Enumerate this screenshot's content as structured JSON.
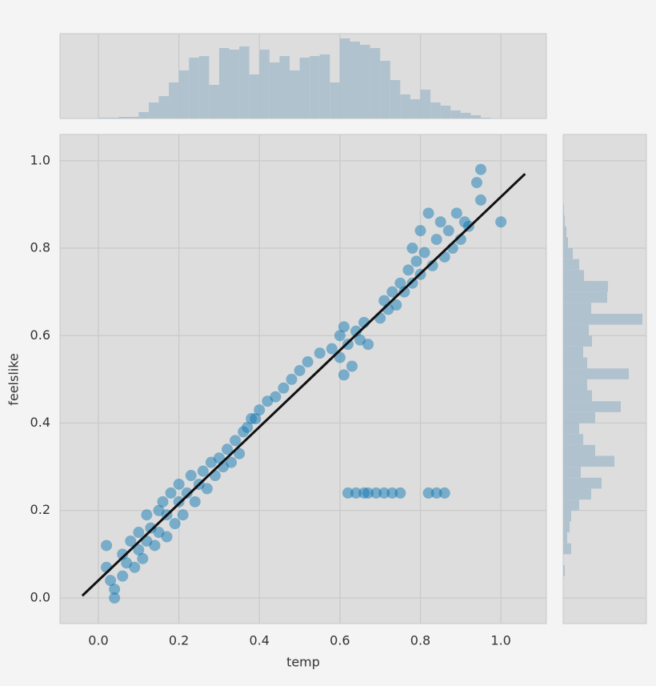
{
  "chart_data": {
    "type": "scatter",
    "xlabel": "temp",
    "ylabel": "feelslike",
    "xlim": [
      -0.0954,
      1.113
    ],
    "ylim": [
      -0.0586,
      1.06
    ],
    "xticks": [
      {
        "value": 0,
        "label": "0.0"
      },
      0.2,
      0.4,
      0.6,
      0.8,
      {
        "value": 1,
        "label": "1.0"
      }
    ],
    "yticks": [
      {
        "value": 0,
        "label": "0.0"
      },
      0.2,
      0.4,
      0.6,
      0.8,
      {
        "value": 1,
        "label": "1.0"
      }
    ],
    "grid": true,
    "color": "#0072b2",
    "line_color": "#111111",
    "hist_color": "#a9bdcd",
    "x": [
      0.02,
      0.02,
      0.03,
      0.04,
      0.04,
      0.06,
      0.06,
      0.07,
      0.08,
      0.09,
      0.1,
      0.1,
      0.11,
      0.12,
      0.12,
      0.13,
      0.14,
      0.15,
      0.15,
      0.16,
      0.17,
      0.17,
      0.18,
      0.19,
      0.2,
      0.2,
      0.21,
      0.22,
      0.23,
      0.24,
      0.25,
      0.26,
      0.27,
      0.28,
      0.29,
      0.3,
      0.31,
      0.32,
      0.33,
      0.34,
      0.35,
      0.36,
      0.37,
      0.38,
      0.39,
      0.4,
      0.42,
      0.44,
      0.46,
      0.48,
      0.5,
      0.52,
      0.55,
      0.58,
      0.6,
      0.6,
      0.61,
      0.61,
      0.62,
      0.63,
      0.64,
      0.65,
      0.66,
      0.67,
      0.7,
      0.71,
      0.72,
      0.73,
      0.74,
      0.75,
      0.76,
      0.77,
      0.78,
      0.78,
      0.79,
      0.8,
      0.8,
      0.81,
      0.82,
      0.83,
      0.84,
      0.85,
      0.86,
      0.87,
      0.88,
      0.89,
      0.9,
      0.91,
      0.92,
      0.94,
      0.95,
      0.95,
      1.0,
      0.62,
      0.64,
      0.66,
      0.67,
      0.69,
      0.71,
      0.73,
      0.75,
      0.82,
      0.84,
      0.86
    ],
    "y": [
      0.12,
      0.07,
      0.04,
      0.02,
      0.0,
      0.05,
      0.1,
      0.08,
      0.13,
      0.07,
      0.11,
      0.15,
      0.09,
      0.13,
      0.19,
      0.16,
      0.12,
      0.2,
      0.15,
      0.22,
      0.14,
      0.19,
      0.24,
      0.17,
      0.22,
      0.26,
      0.19,
      0.24,
      0.28,
      0.22,
      0.26,
      0.29,
      0.25,
      0.31,
      0.28,
      0.32,
      0.3,
      0.34,
      0.31,
      0.36,
      0.33,
      0.38,
      0.39,
      0.41,
      0.41,
      0.43,
      0.45,
      0.46,
      0.48,
      0.5,
      0.52,
      0.54,
      0.56,
      0.57,
      0.6,
      0.55,
      0.62,
      0.51,
      0.58,
      0.53,
      0.61,
      0.59,
      0.63,
      0.58,
      0.64,
      0.68,
      0.66,
      0.7,
      0.67,
      0.72,
      0.7,
      0.75,
      0.72,
      0.8,
      0.77,
      0.74,
      0.84,
      0.79,
      0.88,
      0.76,
      0.82,
      0.86,
      0.78,
      0.84,
      0.8,
      0.88,
      0.82,
      0.86,
      0.85,
      0.95,
      0.98,
      0.91,
      0.86,
      0.24,
      0.24,
      0.24,
      0.24,
      0.24,
      0.24,
      0.24,
      0.24,
      0.24,
      0.24,
      0.24
    ],
    "regression_line": {
      "x": [
        -0.04,
        1.06
      ],
      "y": [
        0.005,
        0.97
      ]
    },
    "marginal_x": {
      "bins": [
        0,
        0.025,
        0.05,
        0.075,
        0.1,
        0.125,
        0.15,
        0.175,
        0.2,
        0.225,
        0.25,
        0.275,
        0.3,
        0.325,
        0.35,
        0.375,
        0.4,
        0.425,
        0.45,
        0.475,
        0.5,
        0.525,
        0.55,
        0.575,
        0.6,
        0.625,
        0.65,
        0.675,
        0.7,
        0.725,
        0.75,
        0.775,
        0.8,
        0.825,
        0.85,
        0.875,
        0.9,
        0.925,
        0.95,
        0.975,
        1.0
      ],
      "counts": [
        1,
        1,
        2,
        2,
        8,
        20,
        28,
        45,
        60,
        76,
        78,
        42,
        88,
        86,
        90,
        55,
        86,
        70,
        78,
        60,
        76,
        78,
        80,
        45,
        100,
        96,
        92,
        88,
        72,
        48,
        30,
        24,
        36,
        20,
        16,
        10,
        7,
        4,
        1,
        0
      ]
    },
    "marginal_y": {
      "bins": [
        0,
        0.025,
        0.05,
        0.075,
        0.1,
        0.125,
        0.15,
        0.175,
        0.2,
        0.225,
        0.25,
        0.275,
        0.3,
        0.325,
        0.35,
        0.375,
        0.4,
        0.425,
        0.45,
        0.475,
        0.5,
        0.525,
        0.55,
        0.575,
        0.6,
        0.625,
        0.65,
        0.675,
        0.7,
        0.725,
        0.75,
        0.775,
        0.8,
        0.825,
        0.85,
        0.875,
        0.9,
        0.925,
        0.95,
        0.975,
        1.0
      ],
      "counts": [
        0,
        0,
        2,
        0,
        10,
        5,
        8,
        10,
        20,
        35,
        48,
        22,
        64,
        40,
        25,
        20,
        40,
        72,
        36,
        30,
        82,
        30,
        25,
        36,
        32,
        99,
        35,
        55,
        56,
        26,
        20,
        12,
        6,
        4,
        2,
        1,
        0,
        0,
        0,
        0
      ]
    }
  }
}
